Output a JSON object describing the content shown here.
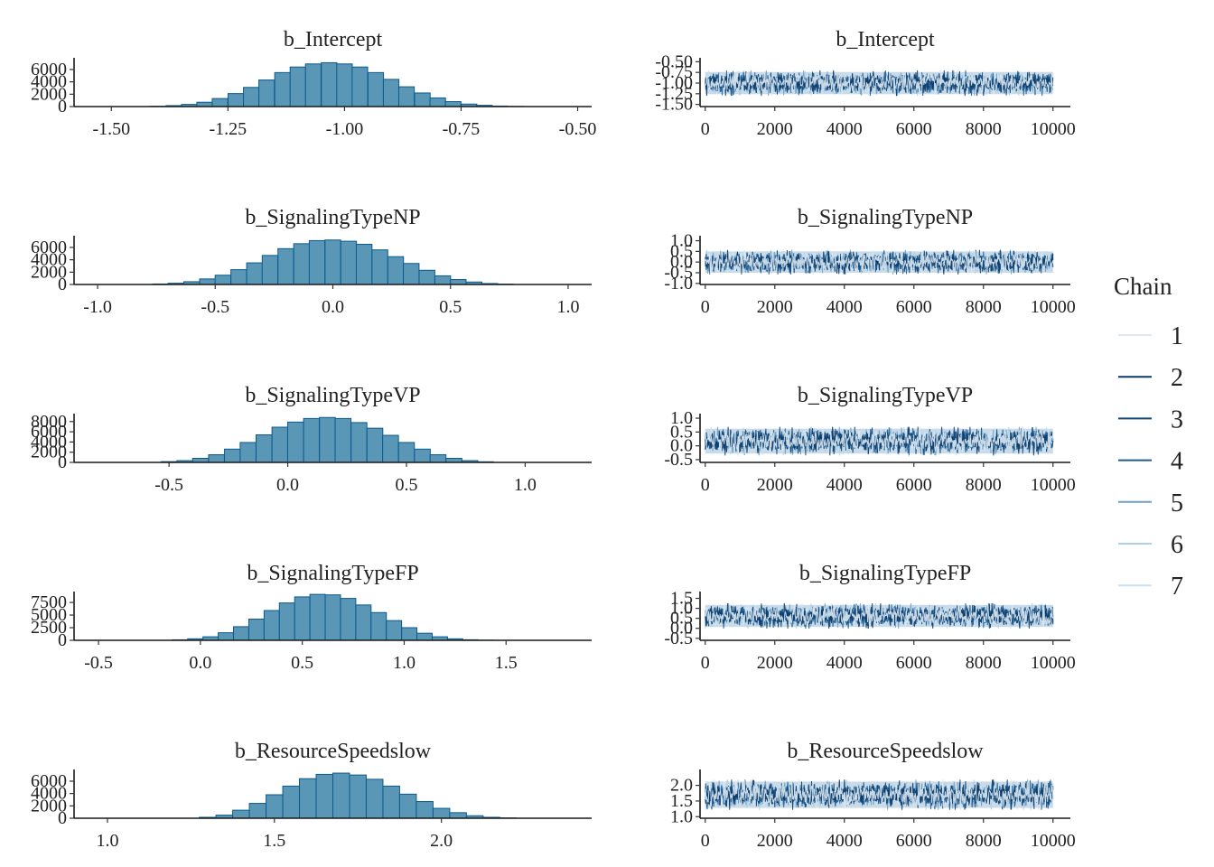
{
  "legend": {
    "title": "Chain",
    "entries": [
      "1",
      "2",
      "3",
      "4",
      "5",
      "6",
      "7"
    ]
  },
  "colors": {
    "hist_fill": "#5a96b6",
    "hist_edge": "#0c5a8c",
    "chain_colors": [
      "#dce9f3",
      "#0b3b6a",
      "#0e4677",
      "#1f5e93",
      "#6f9fc2",
      "#b4cfe3",
      "#cddff0"
    ],
    "trace_band": "#c7dbeb"
  },
  "chart_data": [
    {
      "type": "bar",
      "title": "b_Intercept",
      "xlim": [
        -1.58,
        -0.47
      ],
      "xticks": [
        -1.5,
        -1.25,
        -1.0,
        -0.75,
        -0.5
      ],
      "xtick_labels": [
        "-1.50",
        "-1.25",
        "-1.00",
        "-0.75",
        "-0.50"
      ],
      "ylim": [
        0,
        7600
      ],
      "yticks": [
        0,
        2000,
        4000,
        6000
      ],
      "ytick_labels": [
        "0",
        "2000",
        "4000",
        "6000"
      ],
      "bin_centers": [
        -1.4,
        -1.366,
        -1.333,
        -1.3,
        -1.267,
        -1.233,
        -1.2,
        -1.167,
        -1.133,
        -1.1,
        -1.067,
        -1.033,
        -1.0,
        -0.967,
        -0.933,
        -0.9,
        -0.867,
        -0.833,
        -0.8,
        -0.767,
        -0.733,
        -0.7,
        -0.667,
        -0.633
      ],
      "bin_width": 0.0333,
      "values": [
        50,
        150,
        350,
        700,
        1300,
        2100,
        3100,
        4300,
        5500,
        6400,
        6900,
        7100,
        6900,
        6400,
        5500,
        4400,
        3200,
        2200,
        1400,
        800,
        400,
        200,
        80,
        30
      ]
    },
    {
      "type": "line",
      "title": "b_Intercept",
      "xlim": [
        -150,
        10500
      ],
      "xticks": [
        0,
        2000,
        4000,
        6000,
        8000,
        10000
      ],
      "xtick_labels": [
        "0",
        "2000",
        "4000",
        "6000",
        "8000",
        "10000"
      ],
      "ylim": [
        -1.55,
        -0.45
      ],
      "yticks": [
        -1.5,
        -1.25,
        -1.0,
        -0.75,
        -0.5
      ],
      "ytick_labels": [
        "-1.50",
        "-1.25",
        "-1.00",
        "-0.75",
        "-0.50"
      ],
      "series_center": -1.0,
      "series_spread": 0.26,
      "n_iterations": 10000
    },
    {
      "type": "bar",
      "title": "b_SignalingTypeNP",
      "xlim": [
        -1.1,
        1.1
      ],
      "xticks": [
        -1.0,
        -0.5,
        0.0,
        0.5,
        1.0
      ],
      "xtick_labels": [
        "-1.0",
        "-0.5",
        "0.0",
        "0.5",
        "1.0"
      ],
      "ylim": [
        0,
        7600
      ],
      "yticks": [
        0,
        2000,
        4000,
        6000
      ],
      "ytick_labels": [
        "0",
        "2000",
        "4000",
        "6000"
      ],
      "bin_centers": [
        -0.733,
        -0.667,
        -0.6,
        -0.533,
        -0.467,
        -0.4,
        -0.333,
        -0.267,
        -0.2,
        -0.133,
        -0.067,
        0.0,
        0.067,
        0.133,
        0.2,
        0.267,
        0.333,
        0.4,
        0.467,
        0.533,
        0.6,
        0.667,
        0.733
      ],
      "bin_width": 0.0667,
      "values": [
        80,
        200,
        450,
        900,
        1500,
        2400,
        3500,
        4700,
        5800,
        6600,
        7100,
        7200,
        7000,
        6500,
        5600,
        4500,
        3400,
        2300,
        1400,
        800,
        400,
        150,
        60
      ]
    },
    {
      "type": "line",
      "title": "b_SignalingTypeNP",
      "xlim": [
        -150,
        10500
      ],
      "xticks": [
        0,
        2000,
        4000,
        6000,
        8000,
        10000
      ],
      "xtick_labels": [
        "0",
        "2000",
        "4000",
        "6000",
        "8000",
        "10000"
      ],
      "ylim": [
        -1.05,
        1.15
      ],
      "yticks": [
        -1.0,
        -0.5,
        0.0,
        0.5,
        1.0
      ],
      "ytick_labels": [
        "-1.0",
        "-0.5",
        "0.0",
        "0.5",
        "1.0"
      ],
      "series_center": 0.0,
      "series_spread": 0.5,
      "n_iterations": 10000
    },
    {
      "type": "bar",
      "title": "b_SignalingTypeVP",
      "xlim": [
        -0.9,
        1.28
      ],
      "xticks": [
        -0.5,
        0.0,
        0.5,
        1.0
      ],
      "xtick_labels": [
        "-0.5",
        "0.0",
        "0.5",
        "1.0"
      ],
      "ylim": [
        0,
        9200
      ],
      "yticks": [
        0,
        2000,
        4000,
        6000,
        8000
      ],
      "ytick_labels": [
        "0",
        "2000",
        "4000",
        "6000",
        "8000"
      ],
      "bin_centers": [
        -0.5,
        -0.433,
        -0.367,
        -0.3,
        -0.233,
        -0.167,
        -0.1,
        -0.033,
        0.033,
        0.1,
        0.167,
        0.233,
        0.3,
        0.367,
        0.433,
        0.5,
        0.567,
        0.633,
        0.7,
        0.767,
        0.833
      ],
      "bin_width": 0.0667,
      "values": [
        150,
        350,
        800,
        1500,
        2600,
        3900,
        5400,
        6900,
        7900,
        8600,
        8800,
        8600,
        7800,
        6700,
        5300,
        3900,
        2600,
        1500,
        800,
        350,
        120
      ]
    },
    {
      "type": "line",
      "title": "b_SignalingTypeVP",
      "xlim": [
        -150,
        10500
      ],
      "xticks": [
        0,
        2000,
        4000,
        6000,
        8000,
        10000
      ],
      "xtick_labels": [
        "0",
        "2000",
        "4000",
        "6000",
        "8000",
        "10000"
      ],
      "ylim": [
        -0.6,
        1.1
      ],
      "yticks": [
        -0.5,
        0.0,
        0.5,
        1.0
      ],
      "ytick_labels": [
        "-0.5",
        "0.0",
        "0.5",
        "1.0"
      ],
      "series_center": 0.17,
      "series_spread": 0.45,
      "n_iterations": 10000
    },
    {
      "type": "bar",
      "title": "b_SignalingTypeFP",
      "xlim": [
        -0.62,
        1.92
      ],
      "xticks": [
        -0.5,
        0.0,
        0.5,
        1.0,
        1.5
      ],
      "xtick_labels": [
        "-0.5",
        "0.0",
        "0.5",
        "1.0",
        "1.5"
      ],
      "ylim": [
        0,
        9300
      ],
      "yticks": [
        0,
        2500,
        5000,
        7500
      ],
      "ytick_labels": [
        "0",
        "2500",
        "5000",
        "7500"
      ],
      "bin_centers": [
        -0.1,
        -0.025,
        0.05,
        0.125,
        0.2,
        0.275,
        0.35,
        0.425,
        0.5,
        0.575,
        0.65,
        0.725,
        0.8,
        0.875,
        0.95,
        1.025,
        1.1,
        1.175,
        1.25,
        1.325,
        1.4
      ],
      "bin_width": 0.075,
      "values": [
        100,
        300,
        700,
        1500,
        2700,
        4200,
        5900,
        7400,
        8600,
        9100,
        9000,
        8300,
        7000,
        5500,
        3900,
        2500,
        1400,
        700,
        300,
        110,
        40
      ]
    },
    {
      "type": "line",
      "title": "b_SignalingTypeFP",
      "xlim": [
        -150,
        10500
      ],
      "xticks": [
        0,
        2000,
        4000,
        6000,
        8000,
        10000
      ],
      "xtick_labels": [
        "0",
        "2000",
        "4000",
        "6000",
        "8000",
        "10000"
      ],
      "ylim": [
        -0.6,
        1.75
      ],
      "yticks": [
        -0.5,
        0.0,
        0.5,
        1.0,
        1.5
      ],
      "ytick_labels": [
        "-0.5",
        "0.0",
        "0.5",
        "1.0",
        "1.5"
      ],
      "series_center": 0.62,
      "series_spread": 0.55,
      "n_iterations": 10000
    },
    {
      "type": "bar",
      "title": "b_ResourceSpeedslow",
      "xlim": [
        0.9,
        2.45
      ],
      "xticks": [
        1.0,
        1.5,
        2.0
      ],
      "xtick_labels": [
        "1.0",
        "1.5",
        "2.0"
      ],
      "ylim": [
        0,
        7600
      ],
      "yticks": [
        0,
        2000,
        4000,
        6000
      ],
      "ytick_labels": [
        "0",
        "2000",
        "4000",
        "6000"
      ],
      "bin_centers": [
        1.3,
        1.35,
        1.4,
        1.45,
        1.5,
        1.55,
        1.6,
        1.65,
        1.7,
        1.75,
        1.8,
        1.85,
        1.9,
        1.95,
        2.0,
        2.05,
        2.1,
        2.15,
        2.2
      ],
      "bin_width": 0.05,
      "values": [
        150,
        500,
        1300,
        2400,
        3800,
        5200,
        6400,
        7100,
        7300,
        7000,
        6300,
        5200,
        3900,
        2700,
        1600,
        900,
        400,
        150,
        50
      ]
    },
    {
      "type": "line",
      "title": "b_ResourceSpeedslow",
      "xlim": [
        -150,
        10500
      ],
      "xticks": [
        0,
        2000,
        4000,
        6000,
        8000,
        10000
      ],
      "xtick_labels": [
        "0",
        "2000",
        "4000",
        "6000",
        "8000",
        "10000"
      ],
      "ylim": [
        0.95,
        2.45
      ],
      "yticks": [
        1.0,
        1.5,
        2.0
      ],
      "ytick_labels": [
        "1.0",
        "1.5",
        "2.0"
      ],
      "series_center": 1.7,
      "series_spread": 0.42,
      "n_iterations": 10000
    }
  ]
}
